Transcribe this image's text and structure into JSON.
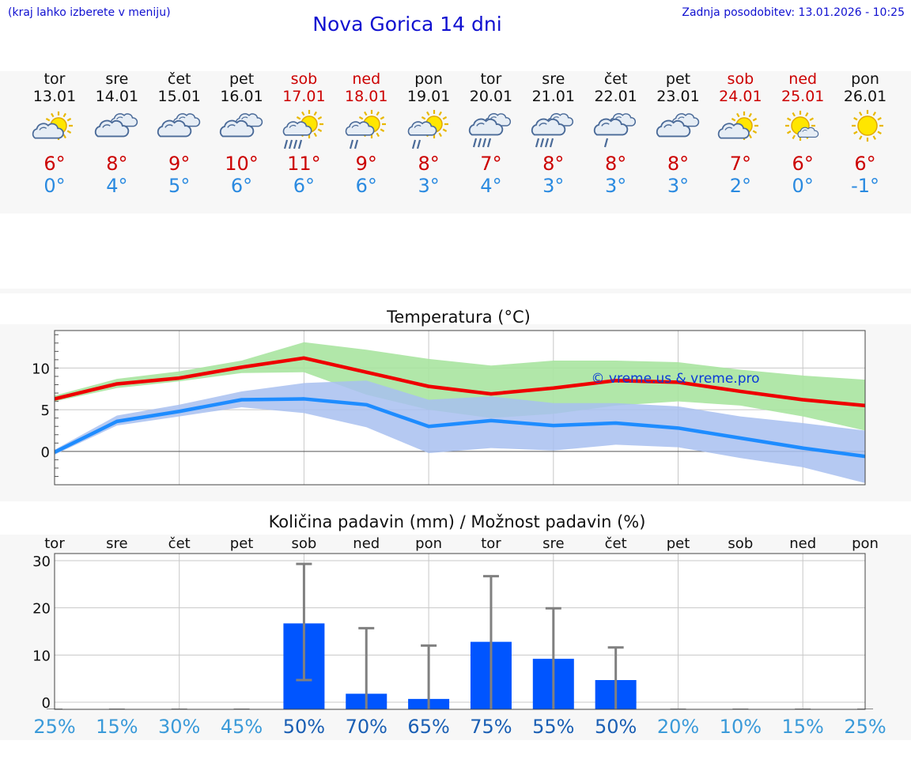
{
  "header": {
    "hint": "(kraj lahko izberete v meniju)",
    "title": "Nova Gorica 14 dni",
    "updated": "Zadnja posodobitev: 13.01.2026 - 10:25"
  },
  "days": [
    {
      "name": "tor",
      "date": "13.01",
      "weekend": false,
      "icon": "partly-sunny-cloud-icon",
      "max": "6°",
      "min": "0°"
    },
    {
      "name": "sre",
      "date": "14.01",
      "weekend": false,
      "icon": "cloudy-icon",
      "max": "8°",
      "min": "4°"
    },
    {
      "name": "čet",
      "date": "15.01",
      "weekend": false,
      "icon": "cloudy-icon",
      "max": "9°",
      "min": "5°"
    },
    {
      "name": "pet",
      "date": "16.01",
      "weekend": false,
      "icon": "cloudy-icon",
      "max": "10°",
      "min": "6°"
    },
    {
      "name": "sob",
      "date": "17.01",
      "weekend": true,
      "icon": "sun-cloud-rain-icon",
      "max": "11°",
      "min": "6°"
    },
    {
      "name": "ned",
      "date": "18.01",
      "weekend": true,
      "icon": "sun-cloud-light-rain-icon",
      "max": "9°",
      "min": "6°"
    },
    {
      "name": "pon",
      "date": "19.01",
      "weekend": false,
      "icon": "sun-cloud-light-rain-icon",
      "max": "8°",
      "min": "3°"
    },
    {
      "name": "tor",
      "date": "20.01",
      "weekend": false,
      "icon": "cloud-rain-icon",
      "max": "7°",
      "min": "4°"
    },
    {
      "name": "sre",
      "date": "21.01",
      "weekend": false,
      "icon": "cloud-rain-icon",
      "max": "8°",
      "min": "3°"
    },
    {
      "name": "čet",
      "date": "22.01",
      "weekend": false,
      "icon": "cloud-light-rain-icon",
      "max": "8°",
      "min": "3°"
    },
    {
      "name": "pet",
      "date": "23.01",
      "weekend": false,
      "icon": "cloudy-icon",
      "max": "8°",
      "min": "3°"
    },
    {
      "name": "sob",
      "date": "24.01",
      "weekend": true,
      "icon": "partly-sunny-cloud-icon",
      "max": "7°",
      "min": "2°"
    },
    {
      "name": "ned",
      "date": "25.01",
      "weekend": true,
      "icon": "sun-small-cloud-icon",
      "max": "6°",
      "min": "0°"
    },
    {
      "name": "pon",
      "date": "26.01",
      "weekend": false,
      "icon": "sun-icon",
      "max": "6°",
      "min": "-1°"
    }
  ],
  "colors": {
    "max": "#cc0000",
    "min": "#2a8ae0",
    "maxLine": "#ee0000",
    "minLine": "#1e8cff",
    "maxBand": "#a8e4a0",
    "minBand": "#a8bff0",
    "bar": "#0055ff",
    "err": "#808080"
  },
  "chart_data": [
    {
      "type": "line",
      "title": "Temperatura (°C)",
      "watermark": "© vreme.us & vreme.pro",
      "ylim": [
        -4,
        14.5
      ],
      "yticks": [
        "10",
        "5",
        "0"
      ],
      "ytick_values": [
        10,
        5,
        0
      ],
      "x": [
        0,
        1,
        2,
        3,
        4,
        5,
        6,
        7,
        8,
        9,
        10,
        11,
        12,
        13
      ],
      "series": [
        {
          "name": "max",
          "values": [
            6.3,
            8.1,
            8.8,
            10.1,
            11.2,
            9.5,
            7.8,
            6.9,
            7.6,
            8.5,
            8.3,
            7.2,
            6.2,
            5.5
          ],
          "band_low": [
            6.0,
            7.6,
            8.4,
            9.4,
            9.5,
            6.8,
            5.0,
            4.0,
            4.5,
            5.5,
            6.0,
            5.5,
            4.2,
            2.5
          ],
          "band_high": [
            6.7,
            8.7,
            9.6,
            10.9,
            13.1,
            12.2,
            11.1,
            10.3,
            10.9,
            10.9,
            10.7,
            9.8,
            9.1,
            8.6
          ]
        },
        {
          "name": "min",
          "values": [
            -0.1,
            3.6,
            4.8,
            6.2,
            6.3,
            5.6,
            3.0,
            3.7,
            3.1,
            3.4,
            2.8,
            1.6,
            0.4,
            -0.6
          ],
          "band_low": [
            -0.4,
            3.1,
            4.2,
            5.3,
            4.6,
            2.9,
            -0.2,
            0.4,
            0.1,
            0.8,
            0.5,
            -0.8,
            -1.9,
            -3.8
          ],
          "band_high": [
            0.2,
            4.3,
            5.6,
            7.2,
            8.2,
            8.5,
            6.2,
            6.6,
            5.8,
            5.8,
            5.4,
            4.2,
            3.4,
            2.5
          ]
        }
      ]
    },
    {
      "type": "bar",
      "title": "Količina padavin (mm) / Možnost padavin (%)",
      "categories": [
        "tor",
        "sre",
        "čet",
        "pet",
        "sob",
        "ned",
        "pon",
        "tor",
        "sre",
        "čet",
        "pet",
        "sob",
        "ned",
        "pon"
      ],
      "ylim": [
        -1.5,
        31.5
      ],
      "yticks": [
        "30",
        "20",
        "10",
        "0"
      ],
      "ytick_values": [
        30,
        20,
        10,
        0
      ],
      "values": [
        0,
        0,
        0,
        0,
        16.7,
        1.8,
        0.7,
        12.8,
        9.2,
        4.7,
        0,
        0,
        0,
        0
      ],
      "err_low": [
        0,
        0,
        0,
        0,
        4.7,
        0,
        0,
        0,
        0,
        0,
        0,
        0,
        0,
        0
      ],
      "err_high": [
        0,
        0,
        0,
        0,
        29.3,
        15.7,
        12.0,
        26.7,
        19.9,
        11.6,
        0,
        0,
        0,
        0
      ],
      "probability": [
        "25%",
        "15%",
        "30%",
        "45%",
        "50%",
        "70%",
        "65%",
        "75%",
        "55%",
        "50%",
        "20%",
        "10%",
        "15%",
        "25%"
      ],
      "probability_values": [
        25,
        15,
        30,
        45,
        50,
        70,
        65,
        75,
        55,
        50,
        20,
        10,
        15,
        25
      ]
    }
  ]
}
